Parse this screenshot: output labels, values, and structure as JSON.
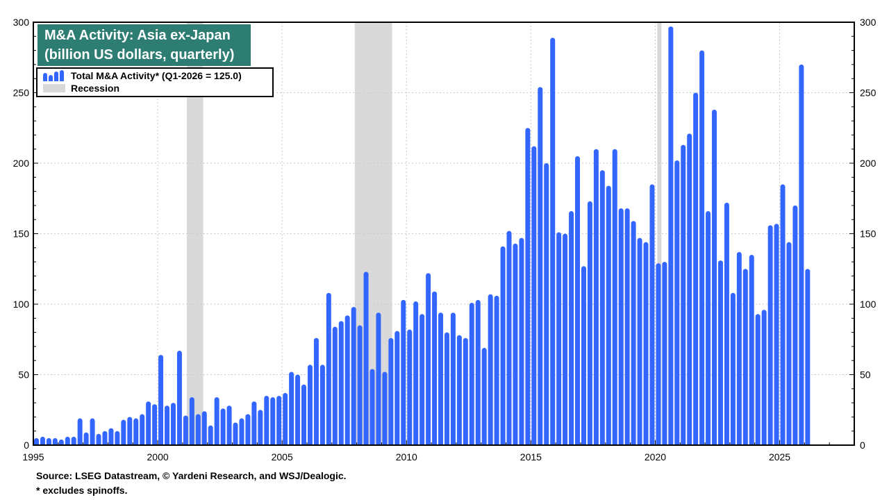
{
  "chart_data": {
    "type": "bar",
    "title": "M&A Activity: Asia ex-Japan",
    "subtitle": "(billion US dollars, quarterly)",
    "xlim": [
      1995,
      2028.0
    ],
    "ylim": [
      0,
      300
    ],
    "x_ticks": [
      "1995",
      "2000",
      "2005",
      "2010",
      "2015",
      "2020",
      "2025"
    ],
    "y_ticks": [
      "0",
      "50",
      "100",
      "150",
      "200",
      "250",
      "300"
    ],
    "grid": true,
    "legend_placement": "top-left",
    "series": [
      {
        "name": "Total M&A Activity* (Q1-2026 = 125.0)",
        "color": "#3366ff",
        "x": [
          1995.125,
          1995.375,
          1995.625,
          1995.875,
          1996.125,
          1996.375,
          1996.625,
          1996.875,
          1997.125,
          1997.375,
          1997.625,
          1997.875,
          1998.125,
          1998.375,
          1998.625,
          1998.875,
          1999.125,
          1999.375,
          1999.625,
          1999.875,
          2000.125,
          2000.375,
          2000.625,
          2000.875,
          2001.125,
          2001.375,
          2001.625,
          2001.875,
          2002.125,
          2002.375,
          2002.625,
          2002.875,
          2003.125,
          2003.375,
          2003.625,
          2003.875,
          2004.125,
          2004.375,
          2004.625,
          2004.875,
          2005.125,
          2005.375,
          2005.625,
          2005.875,
          2006.125,
          2006.375,
          2006.625,
          2006.875,
          2007.125,
          2007.375,
          2007.625,
          2007.875,
          2008.125,
          2008.375,
          2008.625,
          2008.875,
          2009.125,
          2009.375,
          2009.625,
          2009.875,
          2010.125,
          2010.375,
          2010.625,
          2010.875,
          2011.125,
          2011.375,
          2011.625,
          2011.875,
          2012.125,
          2012.375,
          2012.625,
          2012.875,
          2013.125,
          2013.375,
          2013.625,
          2013.875,
          2014.125,
          2014.375,
          2014.625,
          2014.875,
          2015.125,
          2015.375,
          2015.625,
          2015.875,
          2016.125,
          2016.375,
          2016.625,
          2016.875,
          2017.125,
          2017.375,
          2017.625,
          2017.875,
          2018.125,
          2018.375,
          2018.625,
          2018.875,
          2019.125,
          2019.375,
          2019.625,
          2019.875,
          2020.125,
          2020.375,
          2020.625,
          2020.875,
          2021.125,
          2021.375,
          2021.625,
          2021.875,
          2022.125,
          2022.375,
          2022.625,
          2022.875,
          2023.125,
          2023.375,
          2023.625,
          2023.875,
          2024.125,
          2024.375,
          2024.625,
          2024.875,
          2025.125,
          2025.375,
          2025.625,
          2025.875,
          2026.125
        ],
        "values": [
          5,
          6,
          5,
          5,
          4,
          6,
          6,
          19,
          9,
          19,
          8,
          10,
          12,
          10,
          18,
          20,
          19,
          22,
          31,
          29,
          64,
          28,
          30,
          67,
          21,
          34,
          22,
          24,
          14,
          34,
          26,
          28,
          16,
          19,
          22,
          31,
          25,
          35,
          34,
          35,
          37,
          52,
          50,
          43,
          57,
          76,
          57,
          108,
          84,
          88,
          92,
          98,
          85,
          123,
          54,
          94,
          52,
          76,
          81,
          103,
          82,
          102,
          93,
          122,
          109,
          94,
          80,
          94,
          78,
          76,
          101,
          103,
          69,
          107,
          106,
          141,
          152,
          143,
          147,
          225,
          212,
          254,
          200,
          289,
          151,
          150,
          166,
          205,
          127,
          173,
          210,
          195,
          184,
          210,
          168,
          168,
          159,
          147,
          144,
          185,
          129,
          130,
          297,
          202,
          213,
          221,
          250,
          280,
          166,
          238,
          131,
          172,
          108,
          137,
          125,
          135,
          93,
          96,
          156,
          157,
          185,
          144,
          170,
          270,
          125
        ]
      }
    ],
    "recessions": [
      [
        2001.17,
        2001.83
      ],
      [
        2007.92,
        2009.42
      ],
      [
        2020.08,
        2020.25
      ]
    ],
    "recession_label": "Recession",
    "source": "Source: LSEG Datastream, © Yardeni Research, and WSJ/Dealogic.",
    "footnote": "* excludes spinoffs."
  }
}
